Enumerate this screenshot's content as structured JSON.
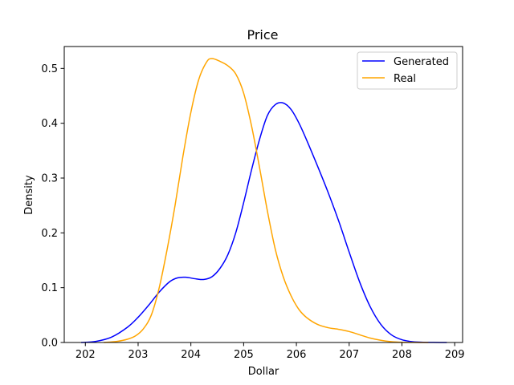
{
  "chart_data": {
    "type": "line",
    "title": "Price",
    "xlabel": "Dollar",
    "ylabel": "Density",
    "xlim": [
      201.6,
      209.15
    ],
    "ylim": [
      0,
      0.54
    ],
    "xticks": [
      202,
      203,
      204,
      205,
      206,
      207,
      208,
      209
    ],
    "yticks": [
      0.0,
      0.1,
      0.2,
      0.3,
      0.4,
      0.5
    ],
    "ytick_labels": [
      "0.0",
      "0.1",
      "0.2",
      "0.3",
      "0.4",
      "0.5"
    ],
    "grid": false,
    "legend_position": "top-right",
    "series": [
      {
        "name": "Generated",
        "color": "#0000ff",
        "x": [
          201.92,
          202.2,
          202.5,
          202.8,
          203.0,
          203.2,
          203.4,
          203.6,
          203.75,
          203.9,
          204.1,
          204.25,
          204.4,
          204.55,
          204.7,
          204.85,
          205.0,
          205.15,
          205.3,
          205.45,
          205.6,
          205.75,
          205.9,
          206.05,
          206.2,
          206.4,
          206.6,
          206.8,
          207.0,
          207.2,
          207.4,
          207.6,
          207.8,
          208.0,
          208.2,
          208.4,
          208.6,
          208.85
        ],
        "y": [
          0.0,
          0.002,
          0.01,
          0.028,
          0.046,
          0.068,
          0.092,
          0.111,
          0.118,
          0.119,
          0.116,
          0.115,
          0.12,
          0.135,
          0.16,
          0.2,
          0.255,
          0.315,
          0.37,
          0.414,
          0.434,
          0.437,
          0.425,
          0.4,
          0.368,
          0.322,
          0.274,
          0.222,
          0.165,
          0.11,
          0.065,
          0.033,
          0.014,
          0.005,
          0.0015,
          0.0004,
          0.0001,
          0.0
        ]
      },
      {
        "name": "Real",
        "color": "#ffa500",
        "x": [
          202.35,
          202.6,
          202.8,
          202.95,
          203.1,
          203.25,
          203.4,
          203.55,
          203.7,
          203.85,
          204.0,
          204.15,
          204.3,
          204.4,
          204.55,
          204.7,
          204.85,
          205.0,
          205.15,
          205.3,
          205.45,
          205.6,
          205.75,
          205.9,
          206.05,
          206.2,
          206.4,
          206.6,
          206.8,
          207.0,
          207.2,
          207.4,
          207.6,
          207.8,
          208.0,
          208.2,
          208.5
        ],
        "y": [
          0.0,
          0.002,
          0.006,
          0.012,
          0.025,
          0.05,
          0.1,
          0.17,
          0.25,
          0.34,
          0.42,
          0.48,
          0.512,
          0.518,
          0.513,
          0.505,
          0.49,
          0.455,
          0.395,
          0.32,
          0.24,
          0.17,
          0.12,
          0.085,
          0.06,
          0.045,
          0.033,
          0.027,
          0.024,
          0.02,
          0.014,
          0.008,
          0.004,
          0.0015,
          0.0004,
          0.0001,
          0.0
        ]
      }
    ]
  }
}
